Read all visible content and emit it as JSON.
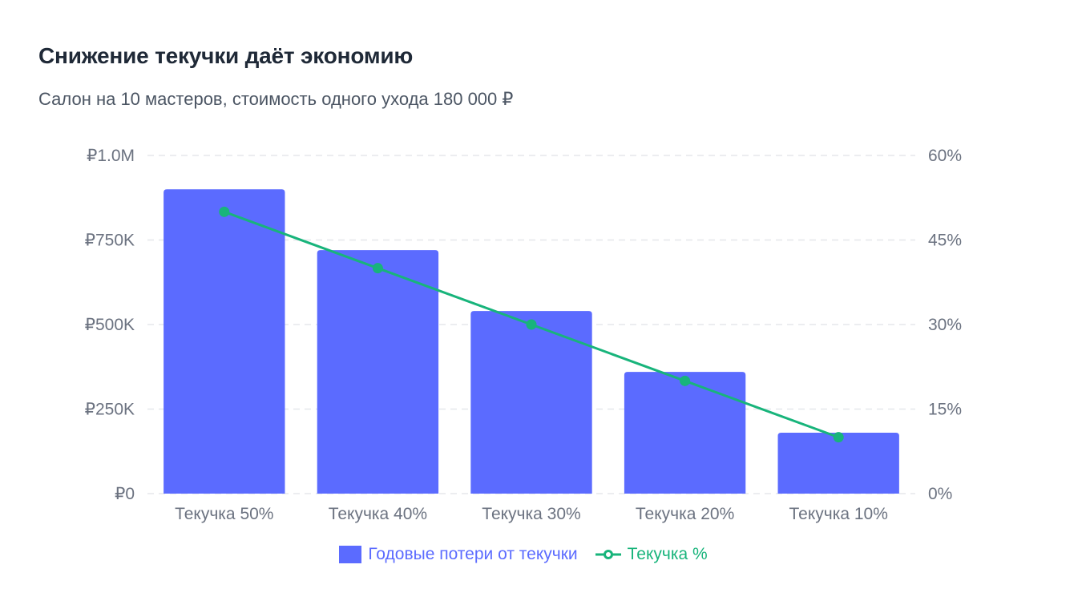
{
  "title": "Снижение текучки даёт экономию",
  "subtitle": "Салон на 10 мастеров, стоимость одного ухода 180 000 ₽",
  "colors": {
    "bar": "#5b6bff",
    "line": "#18b47b",
    "grid": "#e5e7eb",
    "tick": "#6b7280"
  },
  "chart_data": {
    "type": "bar",
    "categories": [
      "Текучка 50%",
      "Текучка 40%",
      "Текучка 30%",
      "Текучка 20%",
      "Текучка 10%"
    ],
    "series": [
      {
        "name": "Годовые потери от текучки",
        "type": "bar",
        "axis": "left",
        "values": [
          900000,
          720000,
          540000,
          360000,
          180000
        ]
      },
      {
        "name": "Текучка %",
        "type": "line",
        "axis": "right",
        "values": [
          50,
          40,
          30,
          20,
          10
        ]
      }
    ],
    "y_left": {
      "ylim": [
        0,
        1000000
      ],
      "ticks": [
        0,
        250000,
        500000,
        750000,
        1000000
      ],
      "tick_labels": [
        "₽0",
        "₽250K",
        "₽500K",
        "₽750K",
        "₽1.0M"
      ]
    },
    "y_right": {
      "ylim": [
        0,
        60
      ],
      "ticks": [
        0,
        15,
        30,
        45,
        60
      ],
      "tick_labels": [
        "0%",
        "15%",
        "30%",
        "45%",
        "60%"
      ]
    },
    "grid": true,
    "legend_position": "bottom"
  }
}
